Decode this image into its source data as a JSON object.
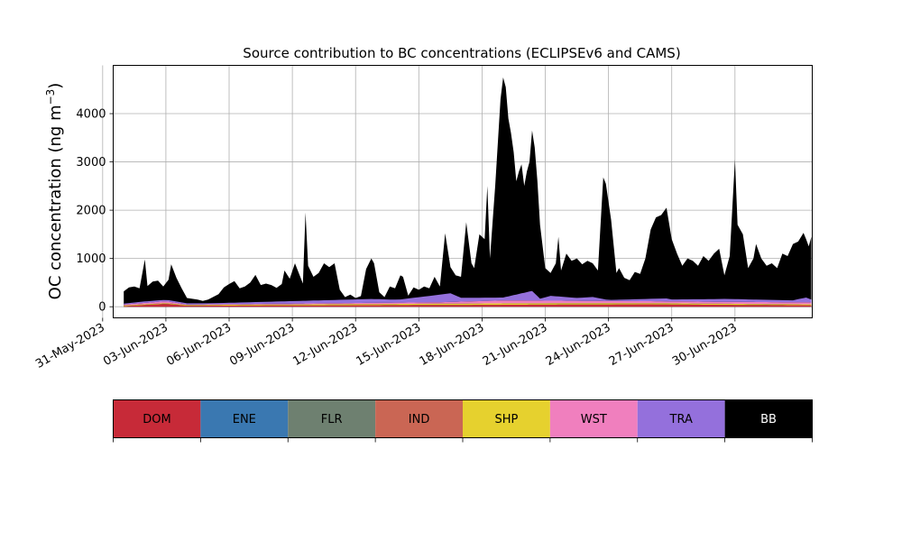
{
  "chart_data": {
    "type": "area",
    "stacked": true,
    "title": "Source contribution to BC concentrations (ECLIPSEv6 and CAMS)",
    "xlabel": "",
    "ylabel_main": "OC concentration (ng m",
    "ylabel_sup": "−3",
    "ylabel_close": ")",
    "grid": true,
    "legend_placement": "colorbar below plot",
    "ylim": [
      -230,
      5000
    ],
    "xlim": [
      "2023-05-31T12:00",
      "2023-07-03T16:00"
    ],
    "yticks": [
      0,
      1000,
      2000,
      3000,
      4000
    ],
    "xticks": [
      "2023-05-31",
      "2023-06-03",
      "2023-06-06",
      "2023-06-09",
      "2023-06-12",
      "2023-06-15",
      "2023-06-18",
      "2023-06-21",
      "2023-06-24",
      "2023-06-27",
      "2023-06-30"
    ],
    "xtick_labels": [
      "31-May-2023",
      "03-Jun-2023",
      "06-Jun-2023",
      "09-Jun-2023",
      "12-Jun-2023",
      "15-Jun-2023",
      "18-Jun-2023",
      "21-Jun-2023",
      "24-Jun-2023",
      "27-Jun-2023",
      "30-Jun-2023"
    ],
    "sources": [
      {
        "name": "DOM",
        "color": "#c72a38",
        "text_color": "#000000"
      },
      {
        "name": "ENE",
        "color": "#3a78b1",
        "text_color": "#000000"
      },
      {
        "name": "FLR",
        "color": "#6e8070",
        "text_color": "#000000"
      },
      {
        "name": "IND",
        "color": "#ca6654",
        "text_color": "#000000"
      },
      {
        "name": "SHP",
        "color": "#e6d12e",
        "text_color": "#000000"
      },
      {
        "name": "WST",
        "color": "#f07fbe",
        "text_color": "#000000"
      },
      {
        "name": "TRA",
        "color": "#9470dc",
        "text_color": "#000000"
      },
      {
        "name": "BB",
        "color": "#000000",
        "text_color": "#ffffff"
      }
    ],
    "total": [
      [
        "2023-06-01T00:00",
        320
      ],
      [
        "2023-06-01T06:00",
        400
      ],
      [
        "2023-06-01T12:00",
        420
      ],
      [
        "2023-06-01T18:00",
        380
      ],
      [
        "2023-06-02T00:00",
        980
      ],
      [
        "2023-06-02T03:00",
        430
      ],
      [
        "2023-06-02T09:00",
        520
      ],
      [
        "2023-06-02T15:00",
        540
      ],
      [
        "2023-06-02T21:00",
        420
      ],
      [
        "2023-06-03T03:00",
        560
      ],
      [
        "2023-06-03T06:00",
        880
      ],
      [
        "2023-06-03T12:00",
        600
      ],
      [
        "2023-06-03T18:00",
        380
      ],
      [
        "2023-06-04T00:00",
        180
      ],
      [
        "2023-06-04T12:00",
        150
      ],
      [
        "2023-06-04T18:00",
        120
      ],
      [
        "2023-06-05T00:00",
        150
      ],
      [
        "2023-06-05T12:00",
        260
      ],
      [
        "2023-06-05T18:00",
        400
      ],
      [
        "2023-06-06T00:00",
        470
      ],
      [
        "2023-06-06T06:00",
        530
      ],
      [
        "2023-06-06T12:00",
        380
      ],
      [
        "2023-06-06T18:00",
        420
      ],
      [
        "2023-06-07T00:00",
        500
      ],
      [
        "2023-06-07T06:00",
        660
      ],
      [
        "2023-06-07T12:00",
        450
      ],
      [
        "2023-06-07T18:00",
        480
      ],
      [
        "2023-06-08T00:00",
        450
      ],
      [
        "2023-06-08T06:00",
        390
      ],
      [
        "2023-06-08T12:00",
        470
      ],
      [
        "2023-06-08T15:00",
        750
      ],
      [
        "2023-06-08T21:00",
        580
      ],
      [
        "2023-06-09T03:00",
        900
      ],
      [
        "2023-06-09T09:00",
        620
      ],
      [
        "2023-06-09T12:00",
        480
      ],
      [
        "2023-06-09T15:00",
        1950
      ],
      [
        "2023-06-09T18:00",
        850
      ],
      [
        "2023-06-10T00:00",
        620
      ],
      [
        "2023-06-10T06:00",
        700
      ],
      [
        "2023-06-10T12:00",
        900
      ],
      [
        "2023-06-10T18:00",
        820
      ],
      [
        "2023-06-11T00:00",
        900
      ],
      [
        "2023-06-11T06:00",
        350
      ],
      [
        "2023-06-11T12:00",
        200
      ],
      [
        "2023-06-11T18:00",
        250
      ],
      [
        "2023-06-12T00:00",
        180
      ],
      [
        "2023-06-12T06:00",
        220
      ],
      [
        "2023-06-12T12:00",
        780
      ],
      [
        "2023-06-12T18:00",
        1000
      ],
      [
        "2023-06-12T21:00",
        900
      ],
      [
        "2023-06-13T03:00",
        300
      ],
      [
        "2023-06-13T09:00",
        200
      ],
      [
        "2023-06-13T15:00",
        420
      ],
      [
        "2023-06-13T21:00",
        380
      ],
      [
        "2023-06-14T03:00",
        650
      ],
      [
        "2023-06-14T06:00",
        620
      ],
      [
        "2023-06-14T12:00",
        230
      ],
      [
        "2023-06-14T18:00",
        400
      ],
      [
        "2023-06-15T00:00",
        350
      ],
      [
        "2023-06-15T06:00",
        420
      ],
      [
        "2023-06-15T12:00",
        380
      ],
      [
        "2023-06-15T18:00",
        620
      ],
      [
        "2023-06-16T00:00",
        420
      ],
      [
        "2023-06-16T06:00",
        1520
      ],
      [
        "2023-06-16T12:00",
        820
      ],
      [
        "2023-06-16T18:00",
        650
      ],
      [
        "2023-06-17T00:00",
        620
      ],
      [
        "2023-06-17T06:00",
        1750
      ],
      [
        "2023-06-17T12:00",
        900
      ],
      [
        "2023-06-17T15:00",
        800
      ],
      [
        "2023-06-17T21:00",
        1500
      ],
      [
        "2023-06-18T03:00",
        1400
      ],
      [
        "2023-06-18T06:00",
        2500
      ],
      [
        "2023-06-18T09:00",
        1000
      ],
      [
        "2023-06-18T15:00",
        2500
      ],
      [
        "2023-06-18T21:00",
        4300
      ],
      [
        "2023-06-19T00:00",
        4750
      ],
      [
        "2023-06-19T03:00",
        4550
      ],
      [
        "2023-06-19T06:00",
        3900
      ],
      [
        "2023-06-19T09:00",
        3600
      ],
      [
        "2023-06-19T12:00",
        3200
      ],
      [
        "2023-06-19T15:00",
        2600
      ],
      [
        "2023-06-19T18:00",
        2800
      ],
      [
        "2023-06-19T21:00",
        2950
      ],
      [
        "2023-06-20T00:00",
        2500
      ],
      [
        "2023-06-20T03:00",
        2800
      ],
      [
        "2023-06-20T06:00",
        3000
      ],
      [
        "2023-06-20T09:00",
        3650
      ],
      [
        "2023-06-20T12:00",
        3300
      ],
      [
        "2023-06-20T15:00",
        2600
      ],
      [
        "2023-06-20T18:00",
        1700
      ],
      [
        "2023-06-21T00:00",
        800
      ],
      [
        "2023-06-21T06:00",
        700
      ],
      [
        "2023-06-21T12:00",
        900
      ],
      [
        "2023-06-21T15:00",
        1450
      ],
      [
        "2023-06-21T18:00",
        750
      ],
      [
        "2023-06-22T00:00",
        1100
      ],
      [
        "2023-06-22T06:00",
        950
      ],
      [
        "2023-06-22T12:00",
        1000
      ],
      [
        "2023-06-22T18:00",
        880
      ],
      [
        "2023-06-23T00:00",
        950
      ],
      [
        "2023-06-23T06:00",
        900
      ],
      [
        "2023-06-23T12:00",
        750
      ],
      [
        "2023-06-23T18:00",
        2680
      ],
      [
        "2023-06-23T21:00",
        2550
      ],
      [
        "2023-06-24T03:00",
        1800
      ],
      [
        "2023-06-24T09:00",
        700
      ],
      [
        "2023-06-24T12:00",
        800
      ],
      [
        "2023-06-24T18:00",
        600
      ],
      [
        "2023-06-25T00:00",
        550
      ],
      [
        "2023-06-25T06:00",
        720
      ],
      [
        "2023-06-25T12:00",
        680
      ],
      [
        "2023-06-25T18:00",
        1000
      ],
      [
        "2023-06-26T00:00",
        1600
      ],
      [
        "2023-06-26T06:00",
        1850
      ],
      [
        "2023-06-26T12:00",
        1900
      ],
      [
        "2023-06-26T18:00",
        2050
      ],
      [
        "2023-06-27T00:00",
        1400
      ],
      [
        "2023-06-27T06:00",
        1100
      ],
      [
        "2023-06-27T12:00",
        850
      ],
      [
        "2023-06-27T18:00",
        1000
      ],
      [
        "2023-06-28T00:00",
        950
      ],
      [
        "2023-06-28T06:00",
        850
      ],
      [
        "2023-06-28T12:00",
        1050
      ],
      [
        "2023-06-28T18:00",
        950
      ],
      [
        "2023-06-29T00:00",
        1100
      ],
      [
        "2023-06-29T06:00",
        1200
      ],
      [
        "2023-06-29T12:00",
        650
      ],
      [
        "2023-06-29T18:00",
        1050
      ],
      [
        "2023-06-30T00:00",
        3050
      ],
      [
        "2023-06-30T03:00",
        1700
      ],
      [
        "2023-06-30T09:00",
        1500
      ],
      [
        "2023-06-30T15:00",
        800
      ],
      [
        "2023-06-30T21:00",
        1000
      ],
      [
        "2023-07-01T00:00",
        1300
      ],
      [
        "2023-07-01T06:00",
        1000
      ],
      [
        "2023-07-01T12:00",
        850
      ],
      [
        "2023-07-01T18:00",
        900
      ],
      [
        "2023-07-02T00:00",
        800
      ],
      [
        "2023-07-02T06:00",
        1100
      ],
      [
        "2023-07-02T12:00",
        1050
      ],
      [
        "2023-07-02T18:00",
        1300
      ],
      [
        "2023-07-03T00:00",
        1350
      ],
      [
        "2023-07-03T06:00",
        1530
      ],
      [
        "2023-07-03T09:00",
        1400
      ],
      [
        "2023-07-03T12:00",
        1250
      ],
      [
        "2023-07-03T15:00",
        1450
      ]
    ],
    "trace_layers": [
      {
        "source": "DOM",
        "points": [
          [
            "2023-06-01T00:00",
            10
          ],
          [
            "2023-06-03T00:00",
            60
          ],
          [
            "2023-06-04T00:00",
            20
          ],
          [
            "2023-06-19T00:00",
            40
          ],
          [
            "2023-06-26T00:00",
            50
          ],
          [
            "2023-06-29T00:00",
            40
          ],
          [
            "2023-07-03T15:00",
            30
          ]
        ]
      },
      {
        "source": "SHP",
        "points": [
          [
            "2023-06-01T00:00",
            15
          ],
          [
            "2023-06-03T00:00",
            15
          ],
          [
            "2023-06-19T00:00",
            30
          ],
          [
            "2023-07-03T15:00",
            20
          ]
        ]
      },
      {
        "source": "WST",
        "points": [
          [
            "2023-06-01T00:00",
            20
          ],
          [
            "2023-06-03T00:00",
            40
          ],
          [
            "2023-06-04T00:00",
            10
          ],
          [
            "2023-06-16T00:00",
            30
          ],
          [
            "2023-06-19T00:00",
            60
          ],
          [
            "2023-06-26T00:00",
            40
          ],
          [
            "2023-07-03T15:00",
            40
          ]
        ]
      },
      {
        "source": "TRA",
        "points": [
          [
            "2023-06-01T00:00",
            20
          ],
          [
            "2023-06-02T00:00",
            30
          ],
          [
            "2023-06-03T00:00",
            30
          ],
          [
            "2023-06-05T00:00",
            20
          ],
          [
            "2023-06-12T18:00",
            80
          ],
          [
            "2023-06-14T00:00",
            60
          ],
          [
            "2023-06-16T12:00",
            180
          ],
          [
            "2023-06-17T00:00",
            80
          ],
          [
            "2023-06-19T00:00",
            60
          ],
          [
            "2023-06-20T09:00",
            200
          ],
          [
            "2023-06-20T18:00",
            40
          ],
          [
            "2023-06-21T06:00",
            100
          ],
          [
            "2023-06-22T12:00",
            60
          ],
          [
            "2023-06-23T06:00",
            80
          ],
          [
            "2023-06-24T00:00",
            20
          ],
          [
            "2023-06-26T18:00",
            60
          ],
          [
            "2023-06-27T00:00",
            40
          ],
          [
            "2023-06-28T12:00",
            50
          ],
          [
            "2023-06-29T12:00",
            60
          ],
          [
            "2023-07-02T18:00",
            40
          ],
          [
            "2023-07-03T09:00",
            100
          ],
          [
            "2023-07-03T15:00",
            60
          ]
        ]
      }
    ]
  }
}
